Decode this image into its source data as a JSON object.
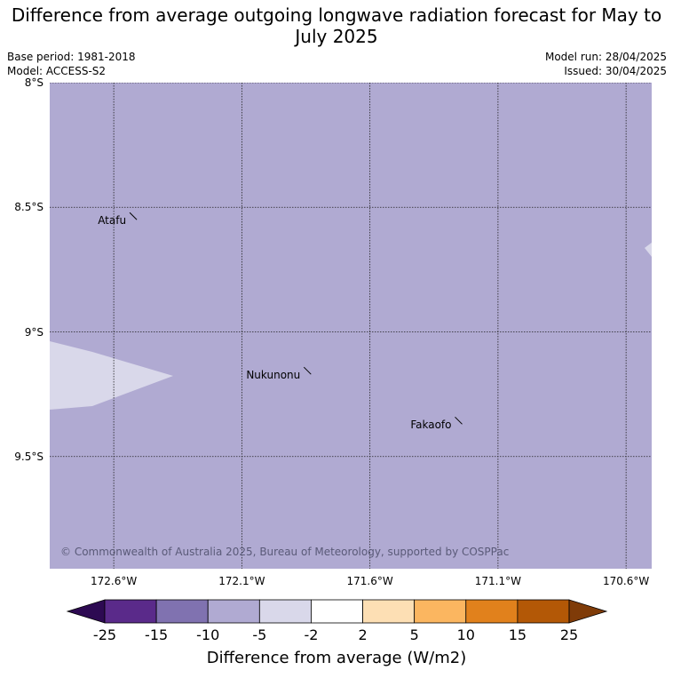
{
  "title": "Difference from average outgoing longwave radiation forecast for May to July 2025",
  "meta": {
    "base_period": "Base period: 1981-2018",
    "model": "Model: ACCESS-S2",
    "model_run": "Model run: 28/04/2025",
    "issued": "Issued: 30/04/2025"
  },
  "map": {
    "background_color": "#b0aad2",
    "extent": {
      "lon": [
        -172.85,
        -170.5
      ],
      "lat": [
        -8.0,
        -9.95
      ]
    },
    "lat_ticks": [
      {
        "label": "8°S",
        "value": -8.0
      },
      {
        "label": "8.5°S",
        "value": -8.5
      },
      {
        "label": "9°S",
        "value": -9.0
      },
      {
        "label": "9.5°S",
        "value": -9.5
      }
    ],
    "lon_ticks": [
      {
        "label": "172.6°W",
        "value": -172.6
      },
      {
        "label": "172.1°W",
        "value": -172.1
      },
      {
        "label": "171.6°W",
        "value": -171.6
      },
      {
        "label": "171.1°W",
        "value": -171.1
      },
      {
        "label": "170.6°W",
        "value": -170.6
      }
    ],
    "places": [
      {
        "name": "Atafu",
        "lon": -172.51,
        "lat": -8.55
      },
      {
        "name": "Nukunonu",
        "lon": -171.83,
        "lat": -9.17
      },
      {
        "name": "Fakaofo",
        "lon": -171.24,
        "lat": -9.37
      }
    ],
    "copyright": "© Commonwealth of Australia 2025, Bureau of Meteorology, supported by COSPPac"
  },
  "colorbar": {
    "title": "Difference from average (W/m2)",
    "tick_labels": [
      "-25",
      "-15",
      "-10",
      "-5",
      "-2",
      "2",
      "5",
      "10",
      "15",
      "25"
    ],
    "colors": [
      "#5a2a8a",
      "#8072b0",
      "#b0aad2",
      "#d9d8ea",
      "#ffffff",
      "#fddfb4",
      "#fbb660",
      "#e1811c",
      "#b35806"
    ],
    "under_color": "#2d0a52",
    "over_color": "#7f3b08"
  }
}
